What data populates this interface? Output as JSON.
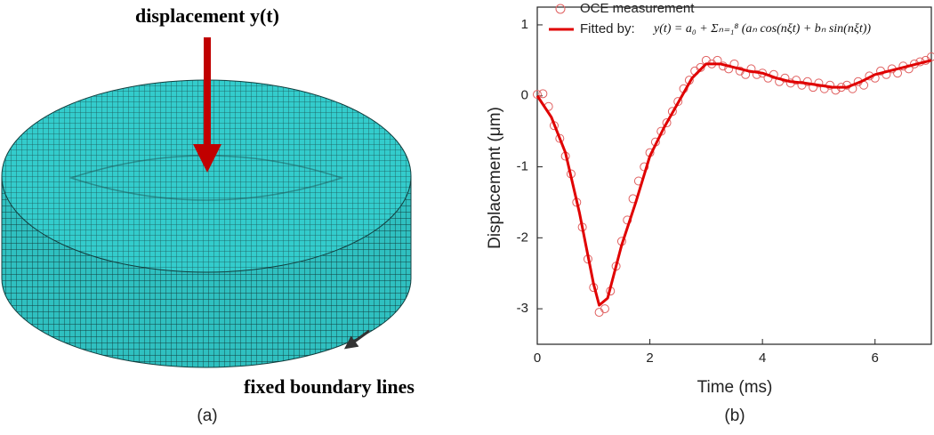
{
  "panel_a": {
    "load_label": "displacement y(t)",
    "boundary_label": "fixed boundary lines",
    "caption": "(a)"
  },
  "chart_data": {
    "type": "line",
    "caption": "(b)",
    "xlabel": "Time (ms)",
    "ylabel": "Displacement (μm)",
    "xlim": [
      0,
      7
    ],
    "ylim": [
      -3.5,
      1.25
    ],
    "xticks": [
      0,
      2,
      4,
      6
    ],
    "yticks": [
      -3,
      -2,
      -1,
      0,
      1
    ],
    "legend_formula": "y(t) = a₀ + Σₙ₌₁⁸ (aₙ cos(nξt) + bₙ sin(nξt))",
    "series": [
      {
        "name": "OCE measurement",
        "color": "#e06060",
        "mode": "markers",
        "x": [
          0,
          0.1,
          0.2,
          0.3,
          0.4,
          0.5,
          0.6,
          0.7,
          0.8,
          0.9,
          1.0,
          1.1,
          1.2,
          1.3,
          1.4,
          1.5,
          1.6,
          1.7,
          1.8,
          1.9,
          2.0,
          2.1,
          2.2,
          2.3,
          2.4,
          2.5,
          2.6,
          2.7,
          2.8,
          2.9,
          3.0,
          3.1,
          3.2,
          3.3,
          3.4,
          3.5,
          3.6,
          3.7,
          3.8,
          3.9,
          4.0,
          4.1,
          4.2,
          4.3,
          4.4,
          4.5,
          4.6,
          4.7,
          4.8,
          4.9,
          5.0,
          5.1,
          5.2,
          5.3,
          5.4,
          5.5,
          5.6,
          5.7,
          5.8,
          5.9,
          6.0,
          6.1,
          6.2,
          6.3,
          6.4,
          6.5,
          6.6,
          6.7,
          6.8,
          6.9,
          7.0
        ],
        "values": [
          0.02,
          0.03,
          -0.15,
          -0.42,
          -0.6,
          -0.85,
          -1.1,
          -1.5,
          -1.85,
          -2.3,
          -2.7,
          -3.05,
          -3.0,
          -2.75,
          -2.4,
          -2.05,
          -1.75,
          -1.45,
          -1.2,
          -1.0,
          -0.8,
          -0.65,
          -0.5,
          -0.38,
          -0.22,
          -0.08,
          0.1,
          0.22,
          0.35,
          0.4,
          0.5,
          0.45,
          0.5,
          0.42,
          0.38,
          0.45,
          0.35,
          0.3,
          0.38,
          0.3,
          0.32,
          0.25,
          0.3,
          0.2,
          0.25,
          0.18,
          0.22,
          0.15,
          0.2,
          0.12,
          0.18,
          0.1,
          0.15,
          0.08,
          0.12,
          0.15,
          0.1,
          0.2,
          0.15,
          0.28,
          0.25,
          0.35,
          0.3,
          0.38,
          0.32,
          0.42,
          0.38,
          0.45,
          0.48,
          0.5,
          0.55
        ]
      },
      {
        "name": "Fitted by:",
        "color": "#e00000",
        "mode": "line",
        "x": [
          0,
          0.25,
          0.5,
          0.75,
          1.0,
          1.1,
          1.25,
          1.5,
          1.75,
          2.0,
          2.25,
          2.5,
          2.75,
          3.0,
          3.25,
          3.5,
          3.75,
          4.0,
          4.25,
          4.5,
          4.75,
          5.0,
          5.25,
          5.5,
          5.75,
          6.0,
          6.25,
          6.5,
          6.75,
          7.0
        ],
        "values": [
          0,
          -0.3,
          -0.8,
          -1.65,
          -2.65,
          -2.95,
          -2.85,
          -2.1,
          -1.5,
          -0.85,
          -0.45,
          -0.1,
          0.25,
          0.45,
          0.45,
          0.4,
          0.35,
          0.32,
          0.25,
          0.2,
          0.18,
          0.15,
          0.12,
          0.12,
          0.2,
          0.3,
          0.35,
          0.4,
          0.45,
          0.5
        ]
      }
    ]
  }
}
